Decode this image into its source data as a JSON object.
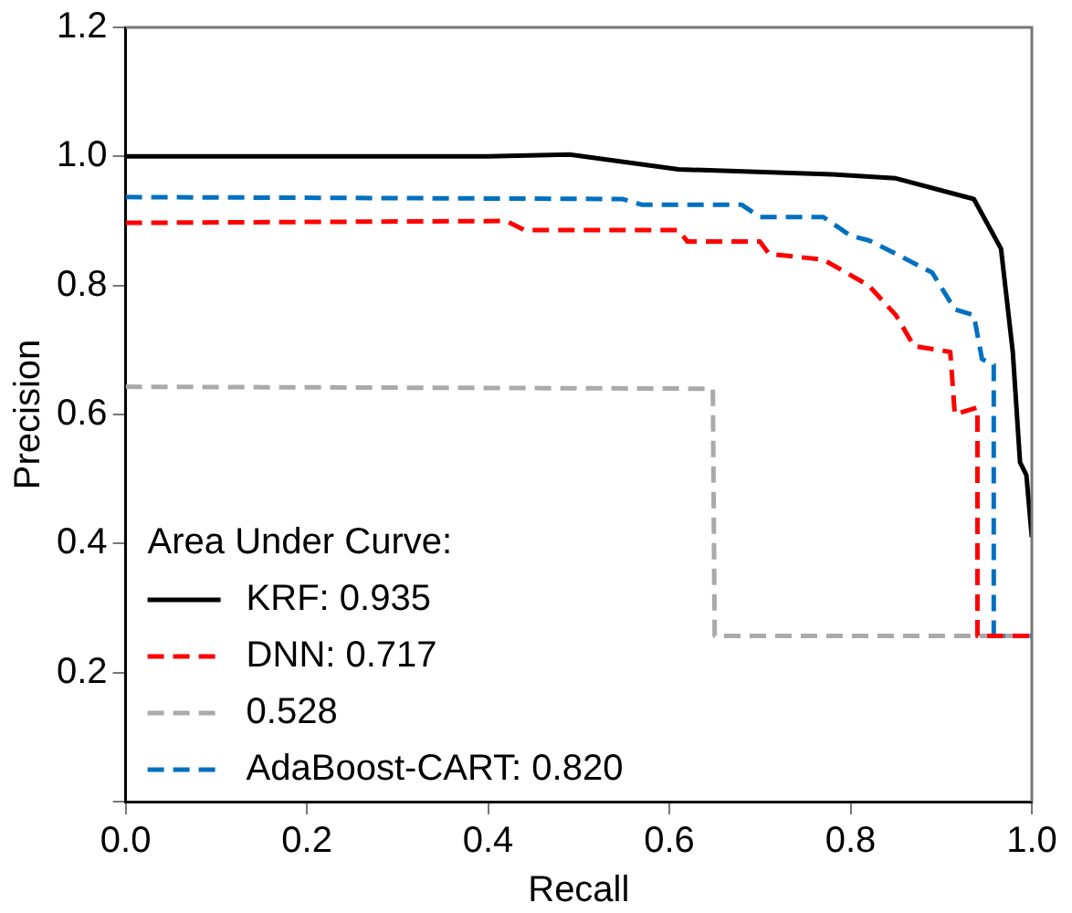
{
  "chart_data": {
    "type": "line",
    "xlabel": "Recall",
    "ylabel": "Precision",
    "legend_title": "Area Under Curve:",
    "legend": "bottom left",
    "grid": false,
    "marker": "none",
    "xlim": [
      0,
      1
    ],
    "xticks": [
      {
        "value": 0,
        "label": "0.0"
      },
      {
        "value": 0.2,
        "label": "0.2"
      },
      {
        "value": 0.4,
        "label": "0.4"
      },
      {
        "value": 0.6,
        "label": "0.6"
      },
      {
        "value": 0.8,
        "label": "0.8"
      },
      {
        "value": 1,
        "label": "1.0"
      }
    ],
    "ylim": [
      0,
      1.2
    ],
    "yticks": [
      {
        "value": 0,
        "label": null
      },
      {
        "value": 0.2,
        "label": "0.2"
      },
      {
        "value": 0.4,
        "label": "0.4"
      },
      {
        "value": 0.6,
        "label": "0.6"
      },
      {
        "value": 0.8,
        "label": "0.8"
      },
      {
        "value": 1,
        "label": "1.0"
      },
      {
        "value": 1.2,
        "label": "1.2"
      }
    ],
    "series": [
      {
        "name": "KRF: 0.935",
        "color": "#000000",
        "line_style": "solid",
        "x": [
          0,
          0.2,
          0.4,
          0.49,
          0.61,
          0.78,
          0.85,
          0.936,
          0.966,
          0.979,
          0.987,
          0.994,
          1
        ],
        "values": [
          1,
          1,
          1,
          1.003,
          0.98,
          0.972,
          0.966,
          0.934,
          0.857,
          0.697,
          0.526,
          0.506,
          0.41
        ]
      },
      {
        "name": "DNN: 0.717",
        "color": "#ff0000",
        "line_style": "dashed",
        "x": [
          0,
          0.42,
          0.44,
          0.61,
          0.62,
          0.7,
          0.71,
          0.77,
          0.82,
          0.85,
          0.87,
          0.91,
          0.915,
          0.94,
          0.94,
          1
        ],
        "values": [
          0.897,
          0.9,
          0.886,
          0.886,
          0.868,
          0.868,
          0.849,
          0.84,
          0.8,
          0.754,
          0.706,
          0.697,
          0.6,
          0.611,
          0.257,
          0.257
        ]
      },
      {
        "name": "0.528",
        "color": "#aaaaaa",
        "line_style": "dashed",
        "x": [
          0,
          0.648,
          0.65,
          1
        ],
        "values": [
          0.643,
          0.64,
          0.257,
          0.257
        ]
      },
      {
        "name": "AdaBoost-CART: 0.820",
        "color": "#0070c0",
        "line_style": "dashed",
        "x": [
          0,
          0.548,
          0.57,
          0.68,
          0.7,
          0.77,
          0.8,
          0.82,
          0.85,
          0.89,
          0.915,
          0.936,
          0.945,
          0.958,
          0.958,
          1
        ],
        "values": [
          0.937,
          0.934,
          0.925,
          0.925,
          0.906,
          0.906,
          0.877,
          0.87,
          0.849,
          0.82,
          0.763,
          0.754,
          0.686,
          0.677,
          0.257,
          0.257
        ]
      }
    ]
  }
}
